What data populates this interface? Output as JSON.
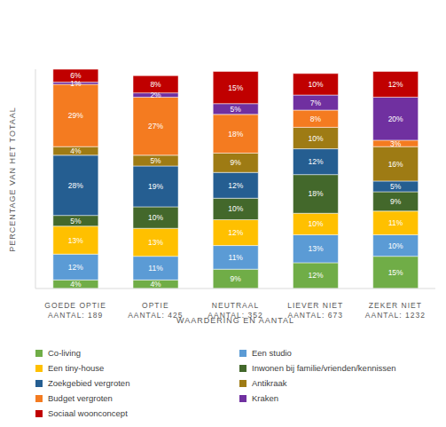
{
  "chart_data": {
    "type": "bar",
    "stacked": true,
    "data_labels": true,
    "tick_labels": "x",
    "legend": "bottom",
    "x_label": "WAARDERING EN AANTAL",
    "y_label": "PERCENTAGE VAN HET TOTAAL",
    "categories": [
      "GOEDE OPTIE\nAANTAL: 189",
      "OPTIE\nAANTAL: 425",
      "NEUTRAAL\nAANTAL: 352",
      "LIEVER NIET\nAANTAL: 673",
      "ZEKER NIET\nAANTAL: 1232"
    ],
    "ylim": [
      0,
      102
    ],
    "series": [
      {
        "name": "Co-living",
        "color": "#70ad47",
        "values": [
          4,
          4,
          9,
          12,
          15
        ],
        "value_labels": [
          "4%",
          "4%",
          "9%",
          "12%",
          "15%"
        ]
      },
      {
        "name": "Een studio",
        "color": "#5b9bd5",
        "values": [
          12,
          11,
          11,
          13,
          10
        ],
        "value_labels": [
          "12%",
          "11%",
          "11%",
          "13%",
          "10%"
        ]
      },
      {
        "name": "Een tiny-house",
        "color": "#ffc000",
        "values": [
          13,
          13,
          12,
          10,
          11
        ],
        "value_labels": [
          "13%",
          "13%",
          "12%",
          "10%",
          "11%"
        ]
      },
      {
        "name": "Inwonen bij familie/vrienden/kennissen",
        "color": "#43682b",
        "values": [
          5,
          10,
          10,
          18,
          9
        ],
        "value_labels": [
          "5%",
          "10%",
          "10%",
          "18%",
          "9%"
        ]
      },
      {
        "name": "Zoekgebied vergroten",
        "color": "#255e91",
        "values": [
          28,
          19,
          12,
          12,
          5
        ],
        "value_labels": [
          "28%",
          "19%",
          "12%",
          "12%",
          "5%"
        ]
      },
      {
        "name": "Antikraak",
        "color": "#9e7b14",
        "values": [
          4,
          5,
          9,
          10,
          16
        ],
        "value_labels": [
          "4%",
          "5%",
          "9%",
          "10%",
          "16%"
        ]
      },
      {
        "name": "Budget vergroten",
        "color": "#f47b20",
        "values": [
          29,
          27,
          18,
          8,
          3
        ],
        "value_labels": [
          "29%",
          "27%",
          "18%",
          "8%",
          "3%"
        ]
      },
      {
        "name": "Kraken",
        "color": "#7030a0",
        "values": [
          1,
          2,
          5,
          7,
          20
        ],
        "value_labels": [
          "1%",
          "2%",
          "5%",
          "7%",
          "20%"
        ]
      },
      {
        "name": "Sociaal woonconcept",
        "color": "#c00000",
        "values": [
          6,
          8,
          15,
          10,
          12
        ],
        "value_labels": [
          "6%",
          "8%",
          "15%",
          "10%",
          "12%"
        ]
      }
    ]
  }
}
